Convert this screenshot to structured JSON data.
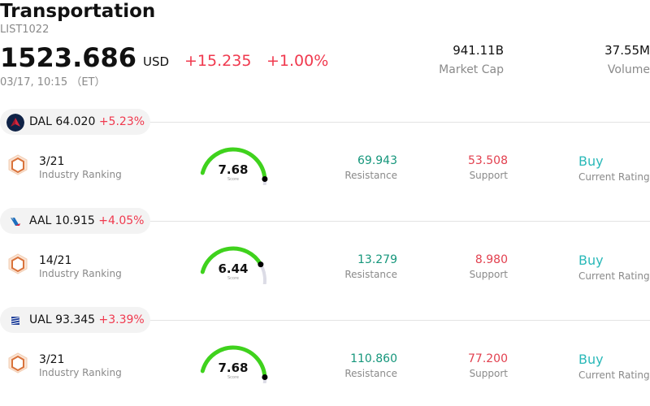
{
  "header": {
    "title": "Transportation",
    "code": "LIST1022",
    "price": "1523.686",
    "currency": "USD",
    "change": "+15.235",
    "change_pct": "+1.00%",
    "time": "03/17, 10:15 （ET）",
    "market_cap_value": "941.11B",
    "market_cap_label": "Market Cap",
    "volume_value": "37.55M",
    "volume_label": "Volume"
  },
  "colors": {
    "down_red": "#f0394e",
    "resistance_green": "#15967b",
    "rating_teal": "#2bb9b9",
    "gauge_green": "#3fd21d",
    "gauge_track": "#dcdce6"
  },
  "stocks": [
    {
      "ticker": "DAL",
      "price": "64.020",
      "change_pct": "+5.23%",
      "logo_icon": "delta-logo-icon",
      "rank_value": "3/21",
      "rank_label": "Industry Ranking",
      "score": "7.68",
      "score_fraction": 0.768,
      "score_label": "Score",
      "resistance_value": "69.943",
      "resistance_label": "Resistance",
      "support_value": "53.508",
      "support_label": "Support",
      "rating_value": "Buy",
      "rating_label": "Current Rating"
    },
    {
      "ticker": "AAL",
      "price": "10.915",
      "change_pct": "+4.05%",
      "logo_icon": "american-airlines-logo-icon",
      "rank_value": "14/21",
      "rank_label": "Industry Ranking",
      "score": "6.44",
      "score_fraction": 0.644,
      "score_label": "Score",
      "resistance_value": "13.279",
      "resistance_label": "Resistance",
      "support_value": "8.980",
      "support_label": "Support",
      "rating_value": "Buy",
      "rating_label": "Current Rating"
    },
    {
      "ticker": "UAL",
      "price": "93.345",
      "change_pct": "+3.39%",
      "logo_icon": "united-logo-icon",
      "rank_value": "3/21",
      "rank_label": "Industry Ranking",
      "score": "7.68",
      "score_fraction": 0.768,
      "score_label": "Score",
      "resistance_value": "110.860",
      "resistance_label": "Resistance",
      "support_value": "77.200",
      "support_label": "Support",
      "rating_value": "Buy",
      "rating_label": "Current Rating"
    }
  ]
}
